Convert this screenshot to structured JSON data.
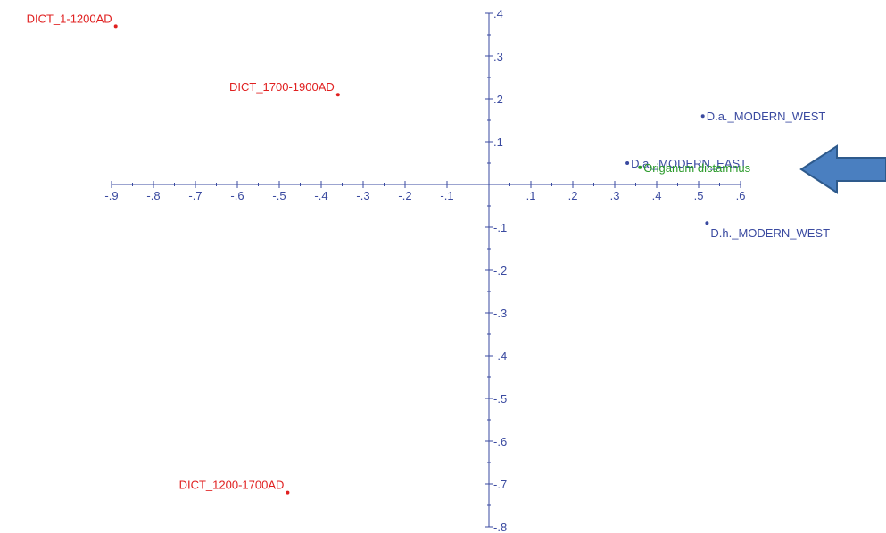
{
  "chart_data": {
    "type": "scatter",
    "title": "",
    "xlabel": "",
    "ylabel": "",
    "xlim": [
      -0.9,
      0.6
    ],
    "ylim": [
      -0.8,
      0.4
    ],
    "x_ticks": [
      {
        "value": -0.9,
        "label": "-.9"
      },
      {
        "value": -0.8,
        "label": "-.8"
      },
      {
        "value": -0.7,
        "label": "-.7"
      },
      {
        "value": -0.6,
        "label": "-.6"
      },
      {
        "value": -0.5,
        "label": "-.5"
      },
      {
        "value": -0.4,
        "label": "-.4"
      },
      {
        "value": -0.3,
        "label": "-.3"
      },
      {
        "value": -0.2,
        "label": "-.2"
      },
      {
        "value": -0.1,
        "label": "-.1"
      },
      {
        "value": 0.1,
        "label": ".1"
      },
      {
        "value": 0.2,
        "label": ".2"
      },
      {
        "value": 0.3,
        "label": ".3"
      },
      {
        "value": 0.4,
        "label": ".4"
      },
      {
        "value": 0.5,
        "label": ".5"
      },
      {
        "value": 0.6,
        "label": ".6"
      }
    ],
    "y_ticks": [
      {
        "value": 0.4,
        "label": ".4"
      },
      {
        "value": 0.3,
        "label": ".3"
      },
      {
        "value": 0.2,
        "label": ".2"
      },
      {
        "value": 0.1,
        "label": ".1"
      },
      {
        "value": -0.1,
        "label": "-.1"
      },
      {
        "value": -0.2,
        "label": "-.2"
      },
      {
        "value": -0.3,
        "label": "-.3"
      },
      {
        "value": -0.4,
        "label": "-.4"
      },
      {
        "value": -0.5,
        "label": "-.5"
      },
      {
        "value": -0.6,
        "label": "-.6"
      },
      {
        "value": -0.7,
        "label": "-.7"
      },
      {
        "value": -0.8,
        "label": "-.8"
      }
    ],
    "grid": false,
    "axis_color": "#3a4aa0",
    "points": [
      {
        "label": "DICT_1-1200AD",
        "x": -0.89,
        "y": 0.37,
        "color": "#e02020",
        "label_side": "left"
      },
      {
        "label": "DICT_1700-1900AD",
        "x": -0.36,
        "y": 0.21,
        "color": "#e02020",
        "label_side": "left"
      },
      {
        "label": "DICT_1200-1700AD",
        "x": -0.48,
        "y": -0.72,
        "color": "#e02020",
        "label_side": "left"
      },
      {
        "label": "D.a._MODERN_WEST",
        "x": 0.51,
        "y": 0.16,
        "color": "#3a4aa0",
        "label_side": "right"
      },
      {
        "label": "D.a._MODERN_EAST",
        "x": 0.33,
        "y": 0.05,
        "color": "#3a4aa0",
        "label_side": "right"
      },
      {
        "label": "Origanum dictamnus",
        "x": 0.36,
        "y": 0.04,
        "color": "#2a9a2a",
        "label_side": "right"
      },
      {
        "label": "D.h._MODERN_WEST",
        "x": 0.52,
        "y": -0.09,
        "color": "#3a4aa0",
        "label_side": "below-right"
      }
    ],
    "annotations": [
      {
        "type": "arrow",
        "direction": "left",
        "fill": "#4a7fc0",
        "stroke": "#2e5a8c"
      }
    ]
  }
}
